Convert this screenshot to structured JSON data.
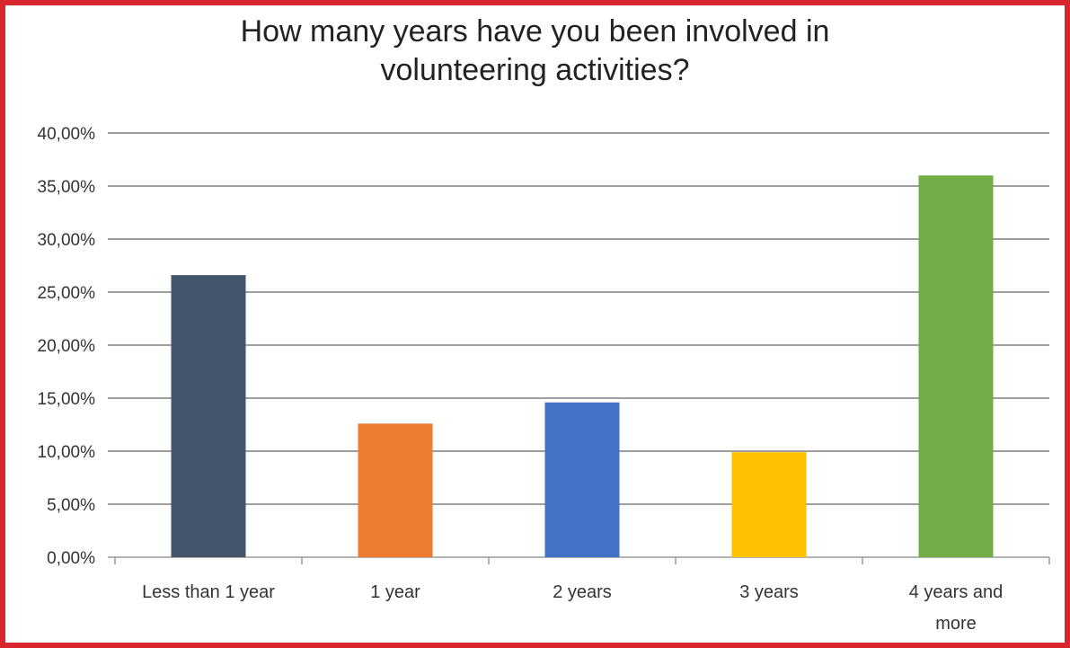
{
  "chart_data": {
    "type": "bar",
    "title": "How many years have you been involved in volunteering activities?",
    "title_lines": [
      "How many years have you been involved in",
      "volunteering activities?"
    ],
    "xlabel": "",
    "ylabel": "",
    "categories": [
      "Less than 1 year",
      "1 year",
      "2 years",
      "3 years",
      "4 years and more"
    ],
    "category_lines": [
      [
        "Less than 1 year"
      ],
      [
        "1 year"
      ],
      [
        "2 years"
      ],
      [
        "3 years"
      ],
      [
        "4 years and",
        "more"
      ]
    ],
    "values": [
      26.6,
      12.6,
      14.6,
      9.9,
      36.0
    ],
    "bar_colors": [
      "#44546a",
      "#ed7d31",
      "#4472c4",
      "#ffc000",
      "#70ad47"
    ],
    "ylim": [
      0,
      40
    ],
    "y_ticks": [
      0,
      5,
      10,
      15,
      20,
      25,
      30,
      35,
      40
    ],
    "y_tick_labels": [
      "0,00%",
      "5,00%",
      "10,00%",
      "15,00%",
      "20,00%",
      "25,00%",
      "30,00%",
      "35,00%",
      "40,00%"
    ],
    "grid": true,
    "legend": "none",
    "frame_color": "#d7262e"
  }
}
